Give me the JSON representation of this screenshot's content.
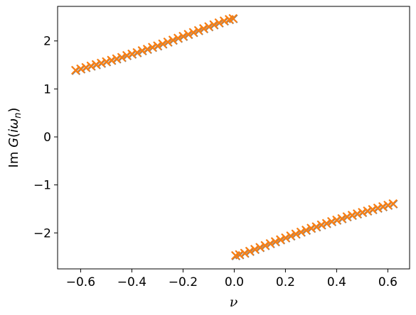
{
  "chart_data": {
    "type": "scatter",
    "xlabel": "ν",
    "ylabel": "Im G(iωn)",
    "ylabel_parts": {
      "prefix": "Im ",
      "func": "G",
      "open": "(",
      "i": "i",
      "omega": "ω",
      "sub": "n",
      "close": ")"
    },
    "xlim": [
      -0.69,
      0.685
    ],
    "ylim": [
      -2.75,
      2.72
    ],
    "x_ticks": [
      -0.6,
      -0.4,
      -0.2,
      0.0,
      0.2,
      0.4,
      0.6
    ],
    "x_tick_labels": [
      "−0.6",
      "−0.4",
      "−0.2",
      "0.0",
      "0.2",
      "0.4",
      "0.6"
    ],
    "y_ticks": [
      -2,
      -1,
      0,
      1,
      2
    ],
    "y_tick_labels": [
      "−2",
      "−1",
      "0",
      "1",
      "2"
    ],
    "grid": false,
    "marker": "x",
    "color": "#ff7f0e",
    "underlay_color": "#7f7f7f",
    "series": [
      {
        "x": [
          -0.62,
          -0.6,
          -0.58,
          -0.56,
          -0.54,
          -0.52,
          -0.5,
          -0.48,
          -0.46,
          -0.44,
          -0.42,
          -0.4,
          -0.38,
          -0.36,
          -0.34,
          -0.32,
          -0.3,
          -0.28,
          -0.26,
          -0.24,
          -0.22,
          -0.2,
          -0.18,
          -0.16,
          -0.14,
          -0.12,
          -0.1,
          -0.08,
          -0.06,
          -0.04,
          -0.02,
          -0.005
        ],
        "y": [
          1.39,
          1.42,
          1.45,
          1.48,
          1.51,
          1.54,
          1.57,
          1.6,
          1.63,
          1.66,
          1.7,
          1.73,
          1.76,
          1.8,
          1.83,
          1.87,
          1.9,
          1.94,
          1.98,
          2.02,
          2.06,
          2.1,
          2.14,
          2.18,
          2.22,
          2.26,
          2.3,
          2.34,
          2.38,
          2.42,
          2.45,
          2.47
        ]
      },
      {
        "x": [
          0.005,
          0.02,
          0.04,
          0.06,
          0.08,
          0.1,
          0.12,
          0.14,
          0.16,
          0.18,
          0.2,
          0.22,
          0.24,
          0.26,
          0.28,
          0.3,
          0.32,
          0.34,
          0.36,
          0.38,
          0.4,
          0.42,
          0.44,
          0.46,
          0.48,
          0.5,
          0.52,
          0.54,
          0.56,
          0.58,
          0.6,
          0.62
        ],
        "y": [
          -2.47,
          -2.45,
          -2.42,
          -2.38,
          -2.34,
          -2.3,
          -2.26,
          -2.22,
          -2.18,
          -2.14,
          -2.1,
          -2.06,
          -2.02,
          -1.98,
          -1.94,
          -1.9,
          -1.87,
          -1.83,
          -1.8,
          -1.76,
          -1.73,
          -1.7,
          -1.66,
          -1.63,
          -1.6,
          -1.57,
          -1.54,
          -1.51,
          -1.48,
          -1.45,
          -1.42,
          -1.39
        ]
      }
    ]
  }
}
